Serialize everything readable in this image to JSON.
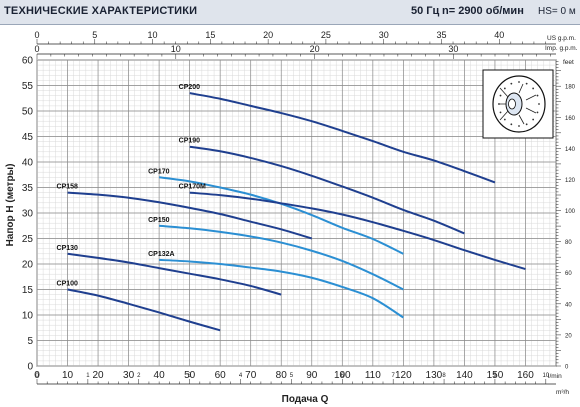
{
  "header": {
    "title": "ТЕХНИЧЕСКИЕ ХАРАКТЕРИСТИКИ",
    "frequency": "50 Гц",
    "speed": "n= 2900  об/мин",
    "hs": "HS= 0 м"
  },
  "chart_data": {
    "type": "line",
    "xlabel": "Подача Q",
    "ylabel": "Напор H (метры)",
    "x_unit": "l/min",
    "x2_unit": "m³/h",
    "top1_unit": "US g.p.m.",
    "top2_unit": "Imp. g.p.m.",
    "right_unit": "feet",
    "xlim": [
      0,
      170
    ],
    "ylim": [
      0,
      60
    ],
    "grid": true,
    "x_ticks": [
      0,
      10,
      20,
      30,
      40,
      50,
      60,
      70,
      80,
      90,
      100,
      110,
      120,
      130,
      140,
      150,
      160
    ],
    "x_tick_labels": [
      "0",
      "10",
      "20",
      "30",
      "40",
      "50",
      "60",
      "70",
      "80",
      "90",
      "100",
      "110",
      "120",
      "130",
      "140",
      "150",
      "160"
    ],
    "y_ticks": [
      0,
      5,
      10,
      15,
      20,
      25,
      30,
      35,
      40,
      45,
      50,
      55,
      60
    ],
    "y_tick_labels": [
      "0",
      "5",
      "10",
      "15",
      "20",
      "25",
      "30",
      "35",
      "40",
      "45",
      "50",
      "55",
      "60"
    ],
    "m3h_ticks": [
      0,
      1,
      2,
      3,
      4,
      5,
      6,
      7,
      8,
      9,
      10
    ],
    "m3h_tick_labels": [
      "0",
      "1",
      "2",
      "3",
      "4",
      "5",
      "6",
      "7",
      "8",
      "9",
      "10"
    ],
    "usgpm_ticks": [
      0,
      5,
      10,
      15,
      20,
      25,
      30,
      35,
      40
    ],
    "usgpm_tick_labels": [
      "0",
      "5",
      "10",
      "15",
      "20",
      "25",
      "30",
      "35",
      "40"
    ],
    "impgpm_ticks": [
      0,
      10,
      20,
      30
    ],
    "impgpm_tick_labels": [
      "0",
      "10",
      "20",
      "30"
    ],
    "feet_ticks": [
      0,
      20,
      40,
      60,
      80,
      100,
      120,
      140,
      160,
      180
    ],
    "feet_tick_labels": [
      "0",
      "20",
      "40",
      "60",
      "80",
      "100",
      "120",
      "140",
      "160",
      "180"
    ],
    "series": [
      {
        "name": "CP100",
        "color": "#1f3f8f",
        "x": [
          10,
          20,
          30,
          40,
          50,
          60
        ],
        "y": [
          15,
          13.8,
          12.2,
          10.5,
          8.7,
          7
        ]
      },
      {
        "name": "CP130",
        "color": "#1f3f8f",
        "x": [
          10,
          20,
          30,
          40,
          50,
          60,
          70,
          80
        ],
        "y": [
          22,
          21.2,
          20.3,
          19.2,
          18.1,
          17,
          15.7,
          14
        ]
      },
      {
        "name": "CP132A",
        "color": "#2b8fd3",
        "x": [
          40,
          50,
          60,
          70,
          80,
          90,
          100,
          110,
          120
        ],
        "y": [
          20.8,
          20.5,
          20,
          19.3,
          18.5,
          17.3,
          15.5,
          13.3,
          9.5
        ]
      },
      {
        "name": "CP150",
        "color": "#2b8fd3",
        "x": [
          40,
          50,
          60,
          70,
          80,
          90,
          100,
          110,
          120
        ],
        "y": [
          27.5,
          27,
          26.3,
          25.4,
          24.2,
          22.6,
          20.6,
          18,
          15
        ]
      },
      {
        "name": "CP158",
        "color": "#1f3f8f",
        "x": [
          10,
          20,
          30,
          40,
          50,
          60,
          70,
          80,
          90
        ],
        "y": [
          34,
          33.6,
          33,
          32.1,
          31,
          29.8,
          28.3,
          26.8,
          25
        ]
      },
      {
        "name": "CP170",
        "color": "#2b8fd3",
        "x": [
          40,
          50,
          60,
          70,
          80,
          90,
          100,
          110,
          120
        ],
        "y": [
          37,
          36.2,
          35,
          33.6,
          31.8,
          29.6,
          27.1,
          24.9,
          22
        ]
      },
      {
        "name": "CP170M",
        "color": "#1f3f8f",
        "x": [
          50,
          60,
          70,
          80,
          90,
          100,
          110,
          120,
          130,
          140,
          150,
          160
        ],
        "y": [
          34,
          33.5,
          32.8,
          31.9,
          30.9,
          29.7,
          28.2,
          26.5,
          24.7,
          22.7,
          20.8,
          19
        ]
      },
      {
        "name": "CP190",
        "color": "#1f3f8f",
        "x": [
          50,
          60,
          70,
          80,
          90,
          100,
          110,
          120,
          130,
          140
        ],
        "y": [
          43,
          42.1,
          40.8,
          39.2,
          37.3,
          35.2,
          33,
          30.6,
          28.5,
          26
        ]
      },
      {
        "name": "CP200",
        "color": "#1f3f8f",
        "x": [
          50,
          60,
          70,
          80,
          90,
          100,
          110,
          120,
          130,
          140,
          150
        ],
        "y": [
          53.5,
          52.4,
          51,
          49.6,
          48,
          46.1,
          44.1,
          42,
          40.3,
          38.2,
          36
        ]
      }
    ]
  },
  "icons": {
    "impeller": "impeller-icon"
  }
}
